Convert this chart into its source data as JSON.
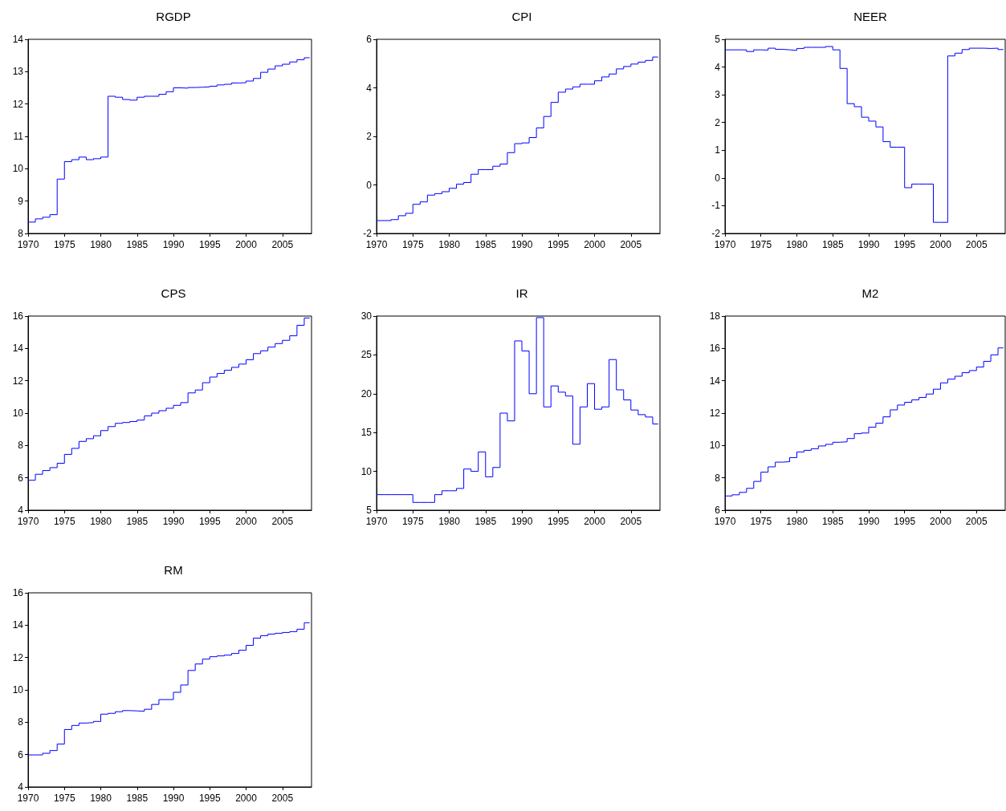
{
  "chart_data": [
    {
      "type": "step",
      "title": "RGDP",
      "color": "#0000ff",
      "xlim": [
        1970,
        2009
      ],
      "xticks": [
        1970,
        1975,
        1980,
        1985,
        1990,
        1995,
        2000,
        2005
      ],
      "ylim": [
        8,
        14
      ],
      "yticks": [
        8,
        9,
        10,
        11,
        12,
        13,
        14
      ],
      "x": [
        1970,
        1971,
        1972,
        1973,
        1974,
        1975,
        1976,
        1977,
        1978,
        1979,
        1980,
        1981,
        1982,
        1983,
        1984,
        1985,
        1986,
        1987,
        1988,
        1989,
        1990,
        1991,
        1992,
        1993,
        1994,
        1995,
        1996,
        1997,
        1998,
        1999,
        2000,
        2001,
        2002,
        2003,
        2004,
        2005,
        2006,
        2007,
        2008,
        2008.75
      ],
      "values": [
        8.35,
        8.45,
        8.5,
        8.58,
        9.68,
        10.22,
        10.28,
        10.36,
        10.28,
        10.31,
        10.36,
        12.24,
        12.21,
        12.14,
        12.12,
        12.21,
        12.24,
        12.24,
        12.3,
        12.38,
        12.5,
        12.49,
        12.51,
        12.52,
        12.53,
        12.55,
        12.59,
        12.61,
        12.65,
        12.66,
        12.71,
        12.79,
        12.98,
        13.08,
        13.18,
        13.23,
        13.3,
        13.37,
        13.43,
        13.43
      ]
    },
    {
      "type": "step",
      "title": "CPI",
      "color": "#0000ff",
      "xlim": [
        1970,
        2009
      ],
      "xticks": [
        1970,
        1975,
        1980,
        1985,
        1990,
        1995,
        2000,
        2005
      ],
      "ylim": [
        -2,
        6
      ],
      "yticks": [
        -2,
        0,
        2,
        4,
        6
      ],
      "x": [
        1970,
        1971,
        1972,
        1973,
        1974,
        1975,
        1976,
        1977,
        1978,
        1979,
        1980,
        1981,
        1982,
        1983,
        1984,
        1985,
        1986,
        1987,
        1988,
        1989,
        1990,
        1991,
        1992,
        1993,
        1994,
        1995,
        1996,
        1997,
        1998,
        1999,
        2000,
        2001,
        2002,
        2003,
        2004,
        2005,
        2006,
        2007,
        2008,
        2008.75
      ],
      "values": [
        -1.47,
        -1.47,
        -1.43,
        -1.27,
        -1.17,
        -0.8,
        -0.7,
        -0.42,
        -0.36,
        -0.28,
        -0.14,
        0.03,
        0.1,
        0.44,
        0.63,
        0.63,
        0.77,
        0.86,
        1.33,
        1.7,
        1.73,
        1.95,
        2.35,
        2.82,
        3.4,
        3.82,
        3.95,
        4.04,
        4.15,
        4.15,
        4.29,
        4.45,
        4.57,
        4.78,
        4.88,
        4.98,
        5.06,
        5.13,
        5.27,
        5.27
      ]
    },
    {
      "type": "step",
      "title": "NEER",
      "color": "#0000ff",
      "xlim": [
        1970,
        2009
      ],
      "xticks": [
        1970,
        1975,
        1980,
        1985,
        1990,
        1995,
        2000,
        2005
      ],
      "ylim": [
        -2,
        5
      ],
      "yticks": [
        -2,
        -1,
        0,
        1,
        2,
        3,
        4,
        5
      ],
      "x": [
        1970,
        1971,
        1972,
        1973,
        1974,
        1975,
        1976,
        1977,
        1978,
        1979,
        1980,
        1981,
        1982,
        1983,
        1984,
        1985,
        1986,
        1987,
        1988,
        1989,
        1990,
        1991,
        1992,
        1993,
        1994,
        1995,
        1996,
        1997,
        1998,
        1999,
        2000,
        2001,
        2002,
        2003,
        2004,
        2005,
        2006,
        2007,
        2008,
        2008.75
      ],
      "values": [
        4.62,
        4.62,
        4.62,
        4.56,
        4.62,
        4.61,
        4.68,
        4.64,
        4.62,
        4.6,
        4.67,
        4.71,
        4.71,
        4.71,
        4.74,
        4.62,
        3.95,
        2.68,
        2.57,
        2.19,
        2.05,
        1.84,
        1.31,
        1.11,
        1.11,
        -0.35,
        -0.22,
        -0.22,
        -0.22,
        -1.6,
        -1.6,
        4.4,
        4.5,
        4.63,
        4.68,
        4.68,
        4.67,
        4.68,
        4.63,
        4.63
      ]
    },
    {
      "type": "step",
      "title": "CPS",
      "color": "#0000ff",
      "xlim": [
        1970,
        2009
      ],
      "xticks": [
        1970,
        1975,
        1980,
        1985,
        1990,
        1995,
        2000,
        2005
      ],
      "ylim": [
        4,
        16
      ],
      "yticks": [
        4,
        6,
        8,
        10,
        12,
        14,
        16
      ],
      "x": [
        1970,
        1971,
        1972,
        1973,
        1974,
        1975,
        1976,
        1977,
        1978,
        1979,
        1980,
        1981,
        1982,
        1983,
        1984,
        1985,
        1986,
        1987,
        1988,
        1989,
        1990,
        1991,
        1992,
        1993,
        1994,
        1995,
        1996,
        1997,
        1998,
        1999,
        2000,
        2001,
        2002,
        2003,
        2004,
        2005,
        2006,
        2007,
        2008,
        2008.75
      ],
      "values": [
        5.85,
        6.22,
        6.45,
        6.63,
        6.9,
        7.45,
        7.82,
        8.25,
        8.42,
        8.6,
        8.92,
        9.17,
        9.37,
        9.42,
        9.48,
        9.57,
        9.83,
        10.0,
        10.15,
        10.3,
        10.48,
        10.65,
        11.25,
        11.43,
        11.88,
        12.23,
        12.45,
        12.65,
        12.83,
        13.03,
        13.3,
        13.68,
        13.85,
        14.08,
        14.3,
        14.5,
        14.78,
        15.43,
        15.88,
        15.88
      ]
    },
    {
      "type": "step",
      "title": "IR",
      "color": "#0000ff",
      "xlim": [
        1970,
        2009
      ],
      "xticks": [
        1970,
        1975,
        1980,
        1985,
        1990,
        1995,
        2000,
        2005
      ],
      "ylim": [
        5,
        30
      ],
      "yticks": [
        5,
        10,
        15,
        20,
        25,
        30
      ],
      "x": [
        1970,
        1971,
        1972,
        1973,
        1974,
        1975,
        1976,
        1977,
        1978,
        1979,
        1980,
        1981,
        1982,
        1983,
        1984,
        1985,
        1986,
        1987,
        1988,
        1989,
        1990,
        1991,
        1992,
        1993,
        1994,
        1995,
        1996,
        1997,
        1998,
        1999,
        2000,
        2001,
        2002,
        2003,
        2004,
        2005,
        2006,
        2007,
        2008,
        2008.75
      ],
      "values": [
        7,
        7,
        7,
        7,
        7,
        6,
        6,
        6,
        7,
        7.5,
        7.5,
        7.8,
        10.3,
        10,
        12.5,
        9.3,
        10.5,
        17.5,
        16.5,
        26.8,
        25.5,
        20,
        29.8,
        18.3,
        21,
        20.2,
        19.7,
        13.5,
        18.3,
        21.3,
        18,
        18.3,
        24.4,
        20.5,
        19.2,
        17.9,
        17.3,
        17,
        16.1,
        16.1
      ]
    },
    {
      "type": "step",
      "title": "M2",
      "color": "#0000ff",
      "xlim": [
        1970,
        2009
      ],
      "xticks": [
        1970,
        1975,
        1980,
        1985,
        1990,
        1995,
        2000,
        2005
      ],
      "ylim": [
        6,
        18
      ],
      "yticks": [
        6,
        8,
        10,
        12,
        14,
        16,
        18
      ],
      "x": [
        1970,
        1971,
        1972,
        1973,
        1974,
        1975,
        1976,
        1977,
        1978,
        1979,
        1980,
        1981,
        1982,
        1983,
        1984,
        1985,
        1986,
        1987,
        1988,
        1989,
        1990,
        1991,
        1992,
        1993,
        1994,
        1995,
        1996,
        1997,
        1998,
        1999,
        2000,
        2001,
        2002,
        2003,
        2004,
        2005,
        2006,
        2007,
        2008,
        2008.75
      ],
      "values": [
        6.88,
        6.95,
        7.1,
        7.35,
        7.78,
        8.35,
        8.68,
        8.97,
        9.0,
        9.25,
        9.6,
        9.7,
        9.8,
        9.97,
        10.07,
        10.2,
        10.23,
        10.43,
        10.73,
        10.77,
        11.13,
        11.38,
        11.77,
        12.2,
        12.5,
        12.67,
        12.82,
        12.97,
        13.18,
        13.48,
        13.87,
        14.1,
        14.28,
        14.5,
        14.63,
        14.85,
        15.2,
        15.6,
        16.03,
        16.03
      ]
    },
    {
      "type": "step",
      "title": "RM",
      "color": "#0000ff",
      "xlim": [
        1970,
        2009
      ],
      "xticks": [
        1970,
        1975,
        1980,
        1985,
        1990,
        1995,
        2000,
        2005
      ],
      "ylim": [
        4,
        16
      ],
      "yticks": [
        4,
        6,
        8,
        10,
        12,
        14,
        16
      ],
      "x": [
        1970,
        1971,
        1972,
        1973,
        1974,
        1975,
        1976,
        1977,
        1978,
        1979,
        1980,
        1981,
        1982,
        1983,
        1984,
        1985,
        1986,
        1987,
        1988,
        1989,
        1990,
        1991,
        1992,
        1993,
        1994,
        1995,
        1996,
        1997,
        1998,
        1999,
        2000,
        2001,
        2002,
        2003,
        2004,
        2005,
        2006,
        2007,
        2008,
        2008.75
      ],
      "values": [
        5.98,
        5.98,
        6.08,
        6.25,
        6.65,
        7.55,
        7.8,
        7.95,
        7.98,
        8.05,
        8.5,
        8.55,
        8.65,
        8.72,
        8.7,
        8.68,
        8.8,
        9.1,
        9.4,
        9.4,
        9.85,
        10.3,
        11.2,
        11.6,
        11.9,
        12.05,
        12.1,
        12.15,
        12.25,
        12.45,
        12.75,
        13.2,
        13.35,
        13.45,
        13.5,
        13.55,
        13.6,
        13.75,
        14.15,
        14.15
      ]
    }
  ]
}
